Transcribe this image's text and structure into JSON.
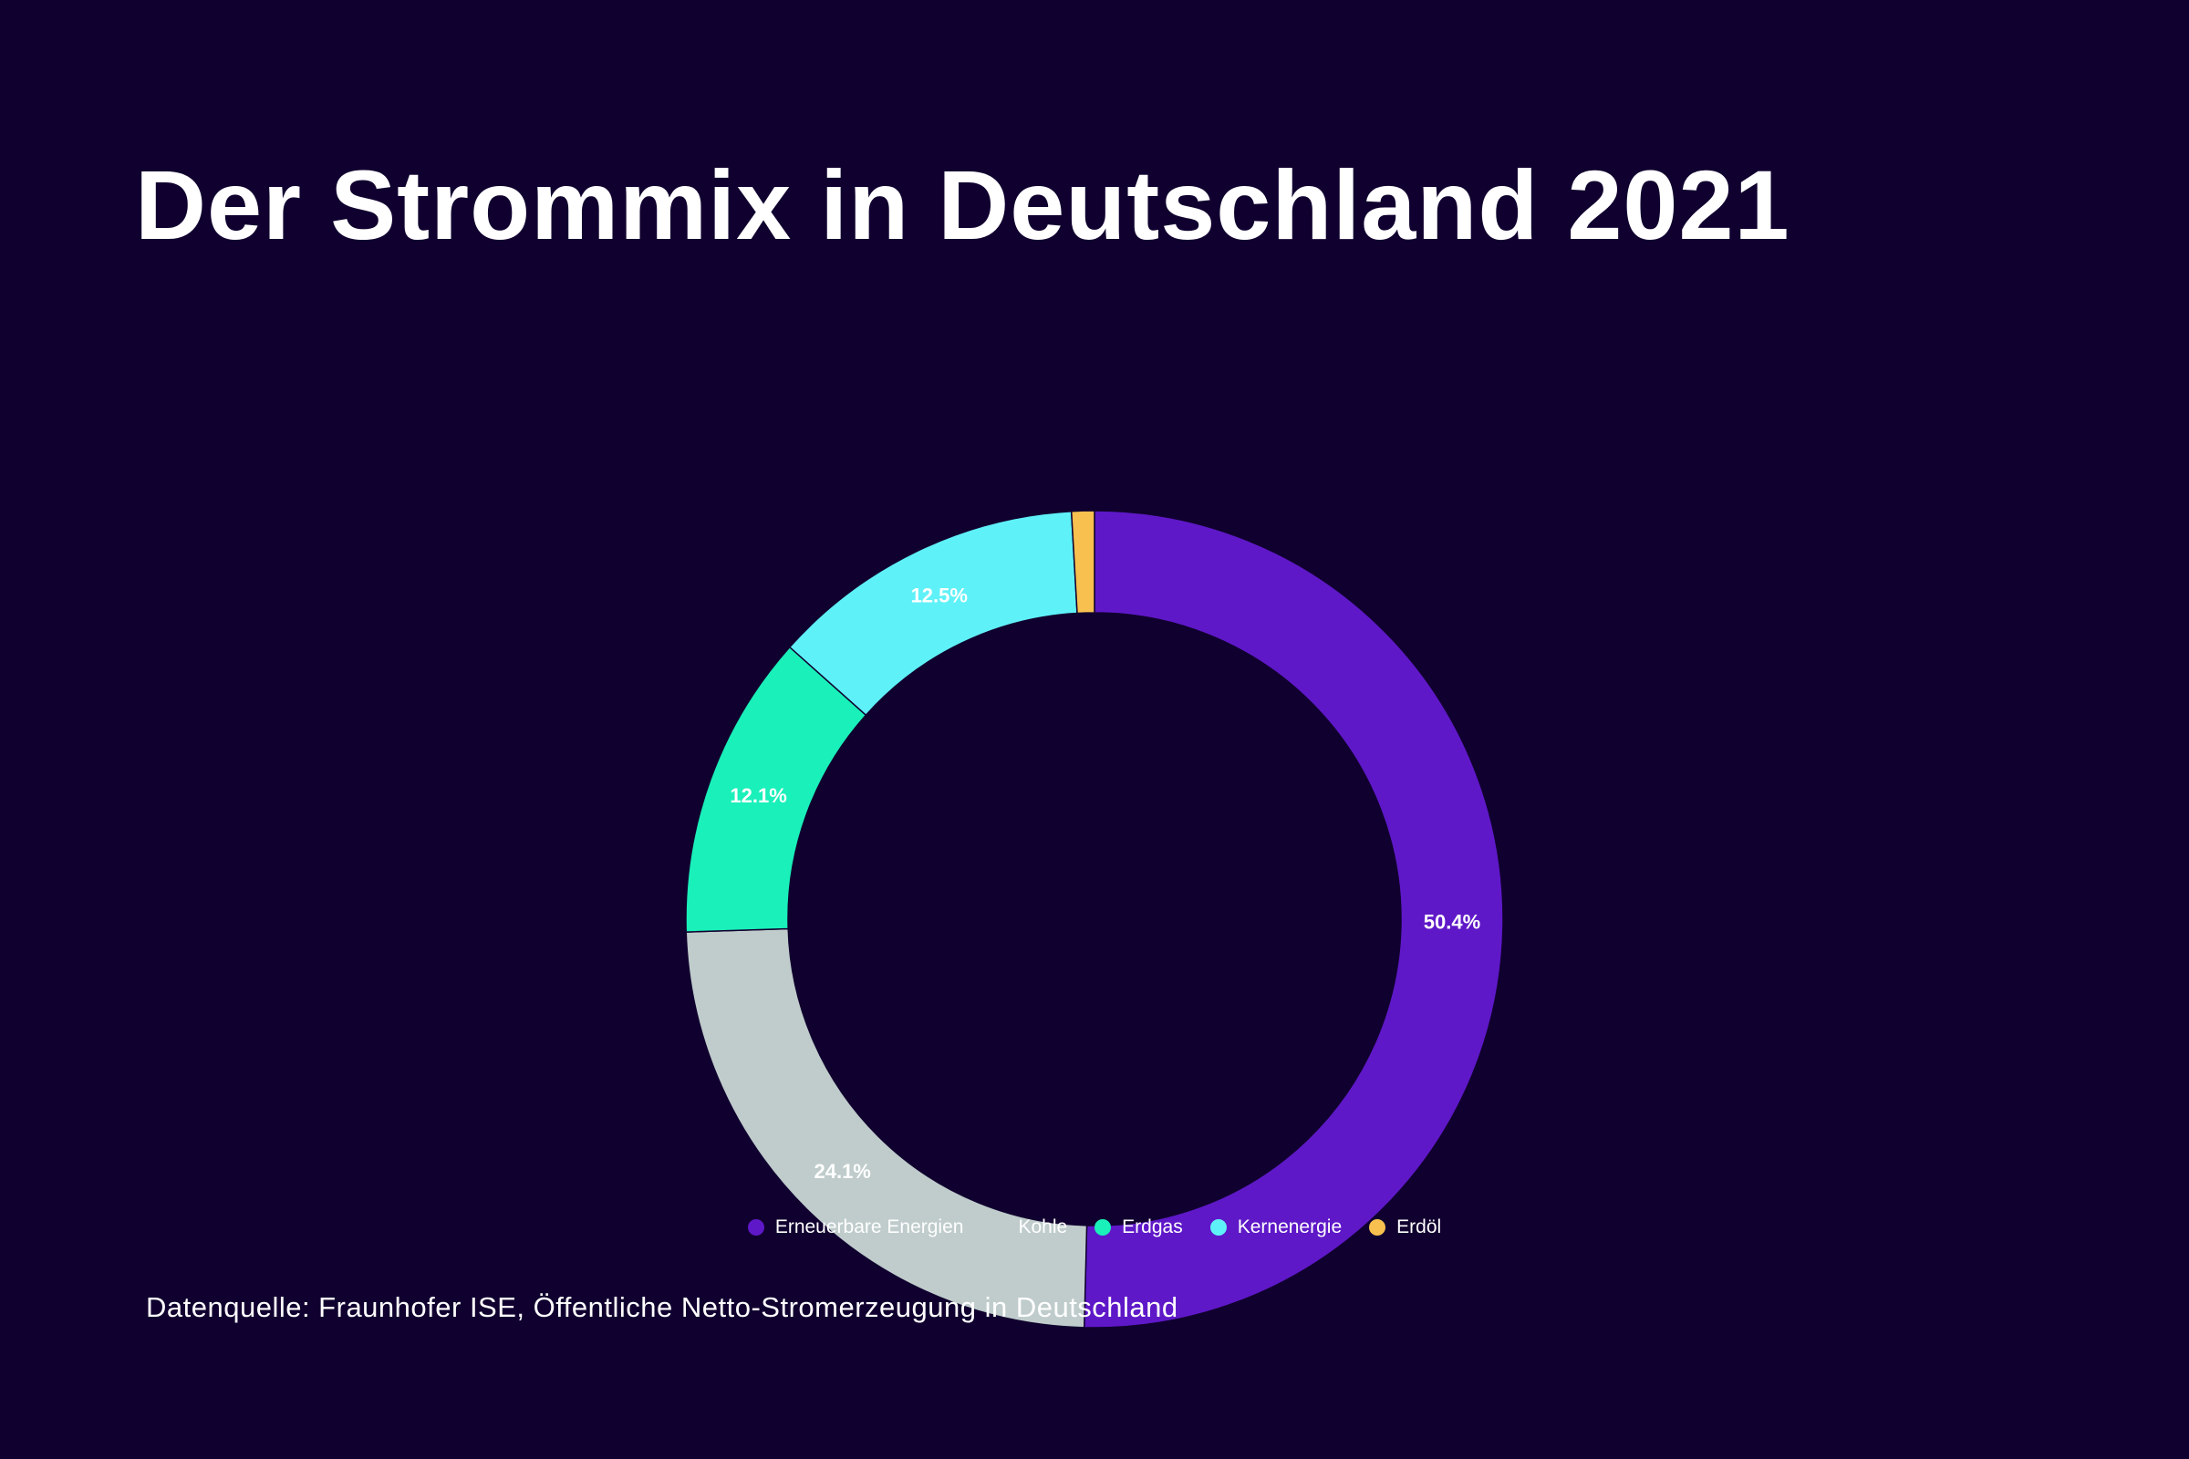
{
  "chart_data": {
    "type": "pie",
    "title": "Der Strommix in Deutschland 2021",
    "slices": [
      {
        "name": "Erneuerbare Energien",
        "value": 50.4,
        "label": "50.4%",
        "color": "#5f18c8"
      },
      {
        "name": "Kohle",
        "value": 24.1,
        "label": "24.1%",
        "color": "#bfcccb"
      },
      {
        "name": "Erdgas",
        "value": 12.1,
        "label": "12.1%",
        "color": "#1af0ba"
      },
      {
        "name": "Kernenergie",
        "value": 12.5,
        "label": "12.5%",
        "color": "#5ff1f8"
      },
      {
        "name": "Erdöl",
        "value": 0.9,
        "label": "",
        "color": "#f7c04f"
      }
    ],
    "legend_position": "bottom-center",
    "source": "Datenquelle: Fraunhofer ISE, Öffentliche Netto-Stromerzeugung in Deutschland"
  },
  "colors": {
    "background": "#10002f",
    "text": "#ffffff"
  }
}
